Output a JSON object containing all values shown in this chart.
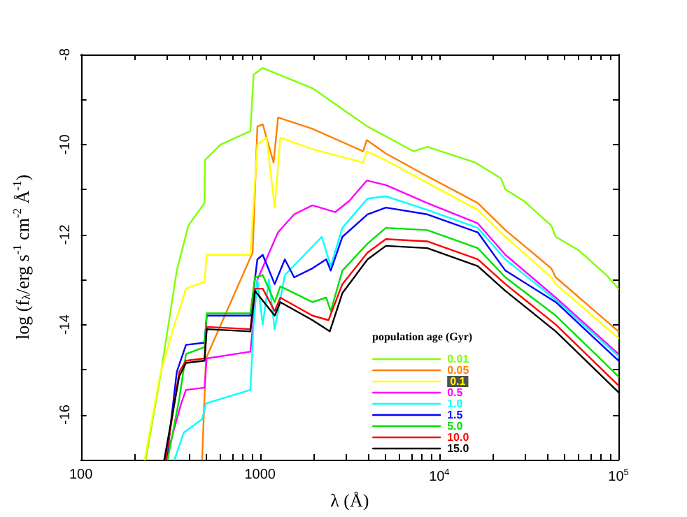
{
  "chart_data": {
    "type": "line",
    "xlabel": "λ (Å)",
    "ylabel": "log (f$_{λ}$/erg s$^{-1}$ cm$^{-2}$ Å$^{-1}$)",
    "legend_title": "population age (Gyr)",
    "legend": "bottom right",
    "log": "x",
    "grid": false,
    "marker": "none",
    "line_style": "solid",
    "xlim": [
      100,
      100000
    ],
    "xticks": [
      100,
      {
        "value": 200,
        "label": null
      },
      {
        "value": 300,
        "label": null
      },
      {
        "value": 400,
        "label": null
      },
      {
        "value": 500,
        "label": null
      },
      {
        "value": 600,
        "label": null
      },
      {
        "value": 700,
        "label": null
      },
      {
        "value": 800,
        "label": null
      },
      {
        "value": 900,
        "label": null
      },
      1000,
      {
        "value": 2000,
        "label": null
      },
      {
        "value": 3000,
        "label": null
      },
      {
        "value": 4000,
        "label": null
      },
      {
        "value": 5000,
        "label": null
      },
      {
        "value": 6000,
        "label": null
      },
      {
        "value": 7000,
        "label": null
      },
      {
        "value": 8000,
        "label": null
      },
      {
        "value": 9000,
        "label": null
      },
      {
        "value": 10000,
        "label": "10$^{4}$"
      },
      {
        "value": 20000,
        "label": null
      },
      {
        "value": 30000,
        "label": null
      },
      {
        "value": 40000,
        "label": null
      },
      {
        "value": 50000,
        "label": null
      },
      {
        "value": 60000,
        "label": null
      },
      {
        "value": 70000,
        "label": null
      },
      {
        "value": 80000,
        "label": null
      },
      {
        "value": 90000,
        "label": null
      },
      {
        "value": 100000,
        "label": "10$^{5}$"
      }
    ],
    "ylim": [
      -17,
      -8
    ],
    "yticks": [
      -16,
      {
        "value": -15,
        "label": null
      },
      -14,
      {
        "value": -13,
        "label": null
      },
      -12,
      {
        "value": -11,
        "label": null
      },
      -10,
      {
        "value": -9,
        "label": null
      },
      -8
    ],
    "series": [
      {
        "name": "0.01",
        "color": "#80ff00",
        "x": [
          230,
          279,
          343,
          398,
          490,
          492,
          603,
          883,
          920,
          1035,
          1960,
          3980,
          7180,
          8570,
          15900,
          22100,
          23400,
          29600,
          42200,
          44700,
          60100,
          85800,
          100000
        ],
        "values": [
          -17,
          -15.1,
          -12.8,
          -11.8,
          -11.3,
          -10.35,
          -10.0,
          -9.7,
          -8.45,
          -8.3,
          -8.75,
          -9.6,
          -10.15,
          -10.05,
          -10.4,
          -10.75,
          -11.0,
          -11.25,
          -11.8,
          -12.05,
          -12.35,
          -12.9,
          -13.2
        ]
      },
      {
        "name": "0.05",
        "color": "#ff8000",
        "x": [
          475,
          499,
          909,
          966,
          1035,
          1190,
          1260,
          1960,
          3760,
          3940,
          5040,
          8090,
          16400,
          23400,
          42200,
          44700,
          100000
        ],
        "values": [
          -17,
          -14.75,
          -12.4,
          -9.6,
          -9.55,
          -10.4,
          -9.4,
          -9.65,
          -10.15,
          -9.9,
          -10.2,
          -10.65,
          -11.3,
          -11.9,
          -12.75,
          -12.95,
          -14.15
        ]
      },
      {
        "name": "0.1",
        "color": "#ffff00",
        "x": [
          227,
          279,
          333,
          386,
          490,
          504,
          883,
          966,
          1087,
          1207,
          1297,
          1960,
          3760,
          3940,
          5040,
          8570,
          16400,
          23400,
          42200,
          44700,
          100000
        ],
        "values": [
          -17,
          -15.05,
          -14.0,
          -13.2,
          -13.05,
          -12.45,
          -12.45,
          -10.0,
          -9.85,
          -11.4,
          -9.85,
          -10.1,
          -10.4,
          -10.15,
          -10.35,
          -10.85,
          -11.45,
          -12.05,
          -12.95,
          -13.1,
          -14.3
        ]
      },
      {
        "name": "0.5",
        "color": "#ff00ff",
        "x": [
          297,
          363,
          386,
          490,
          504,
          883,
          966,
          1260,
          1550,
          1960,
          2630,
          3150,
          3940,
          5040,
          8570,
          16400,
          23400,
          44700,
          100000
        ],
        "values": [
          -17,
          -15.75,
          -15.45,
          -15.4,
          -14.75,
          -14.6,
          -13.0,
          -11.95,
          -11.55,
          -11.35,
          -11.5,
          -11.25,
          -10.8,
          -10.9,
          -11.3,
          -11.75,
          -12.45,
          -13.4,
          -14.65
        ]
      },
      {
        "name": "1.0",
        "color": "#00ffff",
        "x": [
          333,
          375,
          475,
          499,
          883,
          920,
          966,
          1035,
          1120,
          1207,
          1375,
          2210,
          2480,
          2880,
          3980,
          5040,
          8570,
          16400,
          23400,
          44700,
          100000
        ],
        "values": [
          -17,
          -16.4,
          -16.1,
          -15.75,
          -15.45,
          -14.0,
          -13.0,
          -14.0,
          -13.0,
          -14.1,
          -12.9,
          -12.05,
          -12.7,
          -11.85,
          -11.2,
          -11.15,
          -11.45,
          -11.85,
          -12.55,
          -13.45,
          -14.7
        ]
      },
      {
        "name": "1.5",
        "color": "#0000ff",
        "x": [
          301,
          343,
          386,
          490,
          504,
          883,
          966,
          1035,
          1207,
          1375,
          1550,
          1960,
          2340,
          2480,
          2880,
          3980,
          5040,
          8570,
          16400,
          23400,
          44700,
          100000
        ],
        "values": [
          -17,
          -15.05,
          -14.45,
          -14.4,
          -13.8,
          -13.8,
          -12.55,
          -12.45,
          -13.1,
          -12.55,
          -12.95,
          -12.75,
          -12.55,
          -12.8,
          -12.05,
          -11.55,
          -11.4,
          -11.55,
          -11.95,
          -12.8,
          -13.5,
          -14.8
        ]
      },
      {
        "name": "5.0",
        "color": "#00e000",
        "x": [
          305,
          354,
          386,
          490,
          504,
          883,
          937,
          1035,
          1207,
          1297,
          1960,
          2340,
          2480,
          2880,
          3980,
          5040,
          8570,
          16400,
          23400,
          44700,
          100000
        ],
        "values": [
          -17,
          -15.65,
          -14.65,
          -14.5,
          -13.75,
          -13.75,
          -12.95,
          -12.9,
          -13.5,
          -13.15,
          -13.5,
          -13.4,
          -13.7,
          -12.8,
          -12.2,
          -11.85,
          -11.9,
          -12.3,
          -12.95,
          -13.8,
          -15.15
        ]
      },
      {
        "name": "10.0",
        "color": "#ff0000",
        "x": [
          297,
          354,
          386,
          490,
          504,
          883,
          937,
          1035,
          1207,
          1297,
          1960,
          2410,
          2880,
          3980,
          5040,
          8570,
          16400,
          23400,
          44700,
          100000
        ],
        "values": [
          -17,
          -15.05,
          -14.8,
          -14.75,
          -14.05,
          -14.1,
          -13.2,
          -13.2,
          -13.7,
          -13.4,
          -13.8,
          -13.9,
          -13.1,
          -12.4,
          -12.1,
          -12.15,
          -12.55,
          -13.1,
          -14.0,
          -15.35
        ]
      },
      {
        "name": "15.0",
        "color": "#000000",
        "x": [
          292,
          354,
          386,
          490,
          504,
          883,
          937,
          1207,
          1297,
          1960,
          2450,
          2880,
          3980,
          5040,
          8570,
          16400,
          23400,
          44700,
          100000
        ],
        "values": [
          -17,
          -15.15,
          -14.85,
          -14.8,
          -14.1,
          -14.15,
          -13.25,
          -13.8,
          -13.5,
          -13.9,
          -14.15,
          -13.3,
          -12.55,
          -12.25,
          -12.3,
          -12.7,
          -13.25,
          -14.15,
          -15.5
        ]
      }
    ]
  }
}
